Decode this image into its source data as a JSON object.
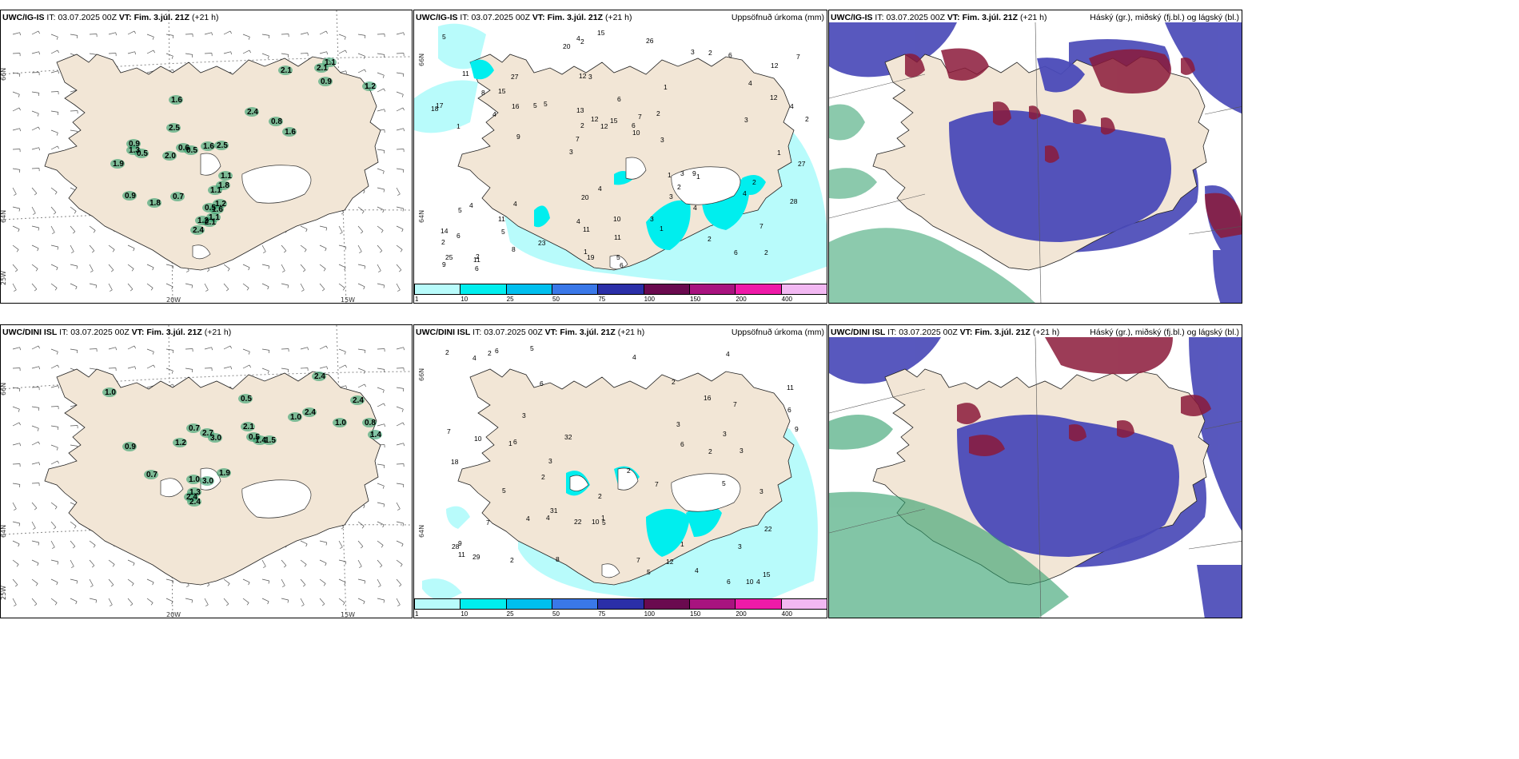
{
  "panels": {
    "p1": {
      "model": "UWC/IG-IS",
      "it_label": "IT:",
      "it": "03.07.2025 00Z",
      "vt_label": "VT:",
      "vt": "Fim. 3.júl. 21Z",
      "lead": "(+21 h)",
      "right": ""
    },
    "p2": {
      "model": "UWC/IG-IS",
      "it_label": "IT:",
      "it": "03.07.2025 00Z",
      "vt_label": "VT:",
      "vt": "Fim. 3.júl. 21Z",
      "lead": "(+21 h)",
      "right": "Uppsöfnuð úrkoma (mm)"
    },
    "p3": {
      "model": "UWC/IG-IS",
      "it_label": "IT:",
      "it": "03.07.2025 00Z",
      "vt_label": "VT:",
      "vt": "Fim. 3.júl. 21Z",
      "lead": "(+21 h)",
      "right": "Háský (gr.), miðský (fj.bl.) og lágský (bl.)"
    },
    "p4": {
      "model": "UWC/DINI ISL",
      "it_label": "IT:",
      "it": "03.07.2025 00Z",
      "vt_label": "VT:",
      "vt": "Fim. 3.júl. 21Z",
      "lead": "(+21 h)",
      "right": ""
    },
    "p5": {
      "model": "UWC/DINI ISL",
      "it_label": "IT:",
      "it": "03.07.2025 00Z",
      "vt_label": "VT:",
      "vt": "Fim. 3.júl. 21Z",
      "lead": "(+21 h)",
      "right": "Uppsöfnuð úrkoma (mm)"
    },
    "p6": {
      "model": "UWC/DINI ISL",
      "it_label": "IT:",
      "it": "03.07.2025 00Z",
      "vt_label": "VT:",
      "vt": "Fim. 3.júl. 21Z",
      "lead": "(+21 h)",
      "right": "Háský (gr.), miðský (fj.bl.) og lágský (bl.)"
    }
  },
  "axes": {
    "lat66": "66N",
    "lat64": "64N",
    "lon20": "20W",
    "lon15": "15W",
    "lon25": "25W"
  },
  "colorbar": {
    "ticks": [
      "1",
      "10",
      "25",
      "50",
      "75",
      "100",
      "150",
      "200",
      "400"
    ],
    "colors": [
      "#b8fbfb",
      "#00eeee",
      "#00bfee",
      "#3a78e8",
      "#2b2fa8",
      "#6a0a4f",
      "#a8137f",
      "#ee1aa8",
      "#f2b8f2"
    ]
  },
  "colors": {
    "land": "#f2e6d6",
    "ocean": "#ffffff",
    "precip_light": "#b8fbfb",
    "precip_mid": "#00eeee",
    "high_cloud": "#3a3aa8",
    "mid_cloud": "#8b1a3a",
    "low_cloud": "#2e9e6a",
    "wind_barb": "#555555"
  },
  "wind_values": {
    "p1": [
      "1.6",
      "2.1",
      "2.1",
      "0.9",
      "1.1",
      "1.2",
      "2.4",
      "0.8",
      "1.6",
      "2.5",
      "0.9",
      "1.3",
      "0.5",
      "1.9",
      "0.6",
      "2.0",
      "0.5",
      "1.6",
      "2.5",
      "1.1",
      "1.8",
      "1.1",
      "1.2",
      "0.9",
      "0.7",
      "1.8",
      "0.5",
      "1.6",
      "1.1",
      "1.2",
      "2.4",
      "2.1"
    ],
    "p4": [
      "1.0",
      "0.5",
      "1.2",
      "0.7",
      "2.7",
      "3.0",
      "2.1",
      "0.5",
      "1.4",
      "1.5",
      "1.0",
      "2.4",
      "2.4",
      "1.0",
      "2.4",
      "0.8",
      "1.4",
      "0.9",
      "0.7",
      "1.0",
      "3.0",
      "1.9",
      "1.3",
      "2.4",
      "2.4"
    ]
  },
  "precip_values": {
    "p2": [
      "2",
      "1",
      "12",
      "3",
      "1",
      "2",
      "12",
      "6",
      "4",
      "5",
      "2",
      "5",
      "3",
      "7",
      "1",
      "11",
      "2",
      "2",
      "1",
      "12",
      "7",
      "4",
      "2",
      "27",
      "3",
      "4",
      "6",
      "7",
      "9",
      "6",
      "5",
      "4",
      "3",
      "8",
      "4",
      "6",
      "25",
      "11",
      "10",
      "5",
      "4",
      "7",
      "2",
      "1",
      "11",
      "6",
      "9",
      "10",
      "6",
      "15",
      "9",
      "17",
      "15",
      "2",
      "11",
      "26",
      "20",
      "12",
      "28",
      "20",
      "23",
      "3",
      "16",
      "14",
      "5",
      "8",
      "27",
      "13",
      "11",
      "15",
      "6",
      "3",
      "2",
      "1",
      "3",
      "4",
      "2",
      "5",
      "3",
      "4",
      "1",
      "2",
      "4",
      "12",
      "4",
      "18",
      "19"
    ],
    "p5": [
      "2",
      "1",
      "2",
      "5",
      "4",
      "6",
      "10",
      "2",
      "4",
      "2",
      "3",
      "4",
      "2",
      "6",
      "3",
      "1",
      "2",
      "9",
      "11",
      "32",
      "10",
      "6",
      "12",
      "4",
      "3",
      "6",
      "7",
      "9",
      "7",
      "28",
      "31",
      "22",
      "29",
      "22",
      "16",
      "7",
      "10",
      "6",
      "5",
      "8",
      "18",
      "15",
      "3",
      "4",
      "5",
      "11",
      "1",
      "3",
      "5",
      "2",
      "5",
      "3",
      "7",
      "4",
      "6",
      "3",
      "2",
      "4",
      "7"
    ]
  }
}
